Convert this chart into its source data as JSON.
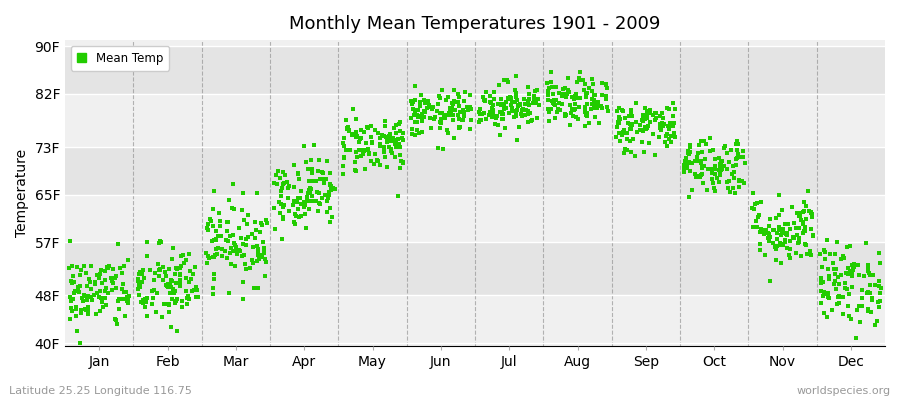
{
  "title": "Monthly Mean Temperatures 1901 - 2009",
  "ylabel": "Temperature",
  "xlabel": "",
  "subtitle_left": "Latitude 25.25 Longitude 116.75",
  "subtitle_right": "worldspecies.org",
  "legend_label": "Mean Temp",
  "marker_color": "#22cc00",
  "marker": "s",
  "marker_size": 2.5,
  "background_color": "#ffffff",
  "plot_bg_light": "#f0f0f0",
  "plot_bg_dark": "#e4e4e4",
  "y_ticks": [
    40,
    48,
    57,
    65,
    73,
    82,
    90
  ],
  "y_tick_labels": [
    "40F",
    "48F",
    "57F",
    "65F",
    "73F",
    "82F",
    "90F"
  ],
  "ylim": [
    39.5,
    91
  ],
  "months": [
    "Jan",
    "Feb",
    "Mar",
    "Apr",
    "May",
    "Jun",
    "Jul",
    "Aug",
    "Sep",
    "Oct",
    "Nov",
    "Dec"
  ],
  "monthly_means_F": [
    48.5,
    49.5,
    57.0,
    65.5,
    73.5,
    78.5,
    80.0,
    80.5,
    76.5,
    70.0,
    59.0,
    50.0
  ],
  "monthly_stds_F": [
    3.2,
    3.5,
    3.5,
    3.0,
    2.5,
    2.0,
    2.0,
    2.0,
    2.2,
    2.5,
    3.0,
    3.5
  ],
  "n_years": 109,
  "seed": 42,
  "dashed_line_color": "#888888",
  "grid_color": "#ffffff"
}
